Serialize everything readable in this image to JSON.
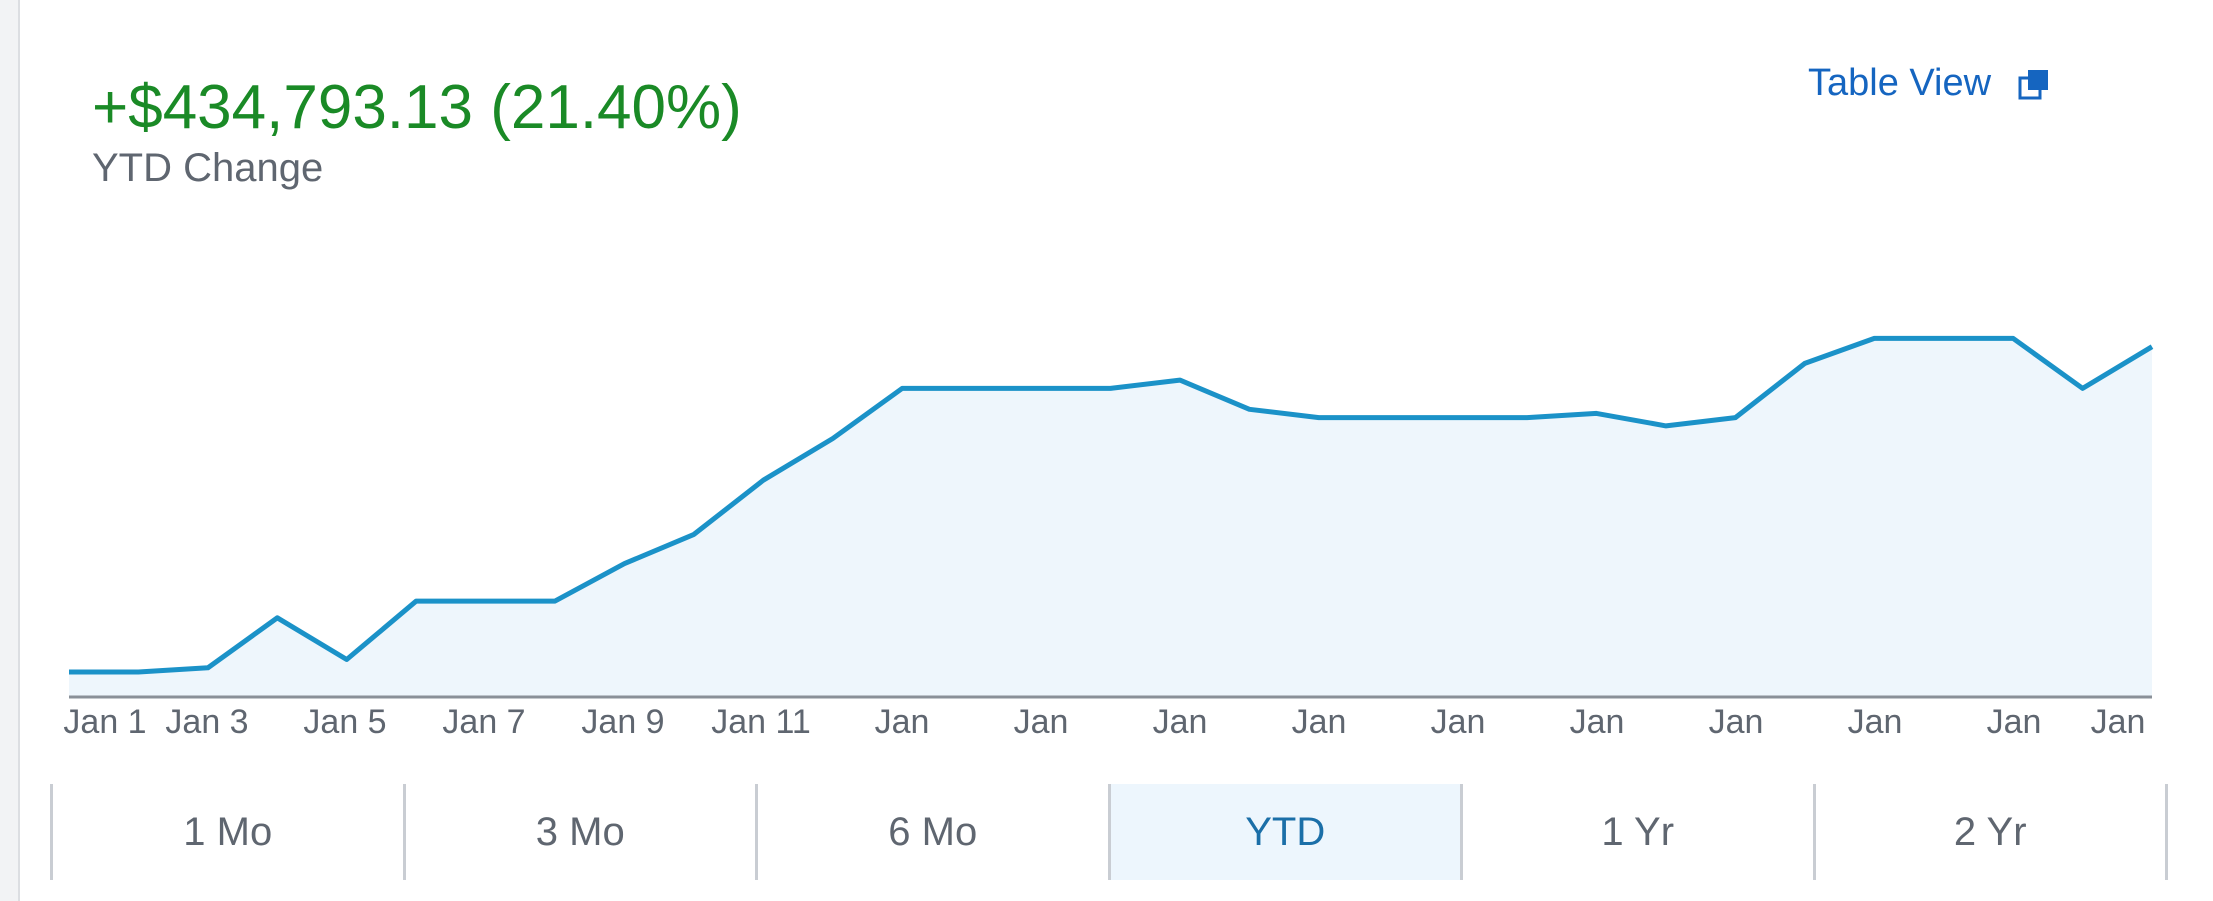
{
  "header": {
    "change_value": "+$434,793.13 (21.40%)",
    "change_label": "YTD Change",
    "table_view_label": "Table View",
    "table_view_icon": "popout-icon"
  },
  "range_tabs": [
    {
      "label": "1 Mo",
      "active": false
    },
    {
      "label": "3 Mo",
      "active": false
    },
    {
      "label": "6 Mo",
      "active": false
    },
    {
      "label": "YTD",
      "active": true
    },
    {
      "label": "1 Yr",
      "active": false
    },
    {
      "label": "2 Yr",
      "active": false
    }
  ],
  "colors": {
    "positive": "#1a8a26",
    "line": "#1b92c8",
    "area_fill": "#eef6fc",
    "link": "#1565c0",
    "active_tab_bg": "#edf6fd",
    "active_tab_text": "#1b6fa8"
  },
  "chart_data": {
    "type": "area",
    "x_tick_labels": [
      "Jan 1",
      "Jan 3",
      "Jan 5",
      "Jan 7",
      "Jan 9",
      "Jan 11",
      "Jan",
      "Jan",
      "Jan",
      "Jan",
      "Jan",
      "Jan",
      "Jan",
      "Jan",
      "Jan",
      "Jan"
    ],
    "x_index": [
      0,
      1,
      2,
      3,
      4,
      5,
      6,
      7,
      8,
      9,
      10,
      11,
      12,
      13,
      14,
      15,
      16,
      17,
      18,
      19,
      20,
      21,
      22,
      23,
      24,
      25,
      26,
      27,
      28,
      29,
      30
    ],
    "values_relative": [
      0.06,
      0.06,
      0.07,
      0.19,
      0.09,
      0.23,
      0.23,
      0.23,
      0.32,
      0.39,
      0.52,
      0.62,
      0.74,
      0.74,
      0.74,
      0.74,
      0.76,
      0.69,
      0.67,
      0.67,
      0.67,
      0.67,
      0.68,
      0.65,
      0.67,
      0.8,
      0.86,
      0.86,
      0.86,
      0.74,
      0.84
    ],
    "y_range": [
      0,
      1
    ],
    "ylabel": "",
    "xlabel": "",
    "grid": false,
    "legend": "none"
  }
}
